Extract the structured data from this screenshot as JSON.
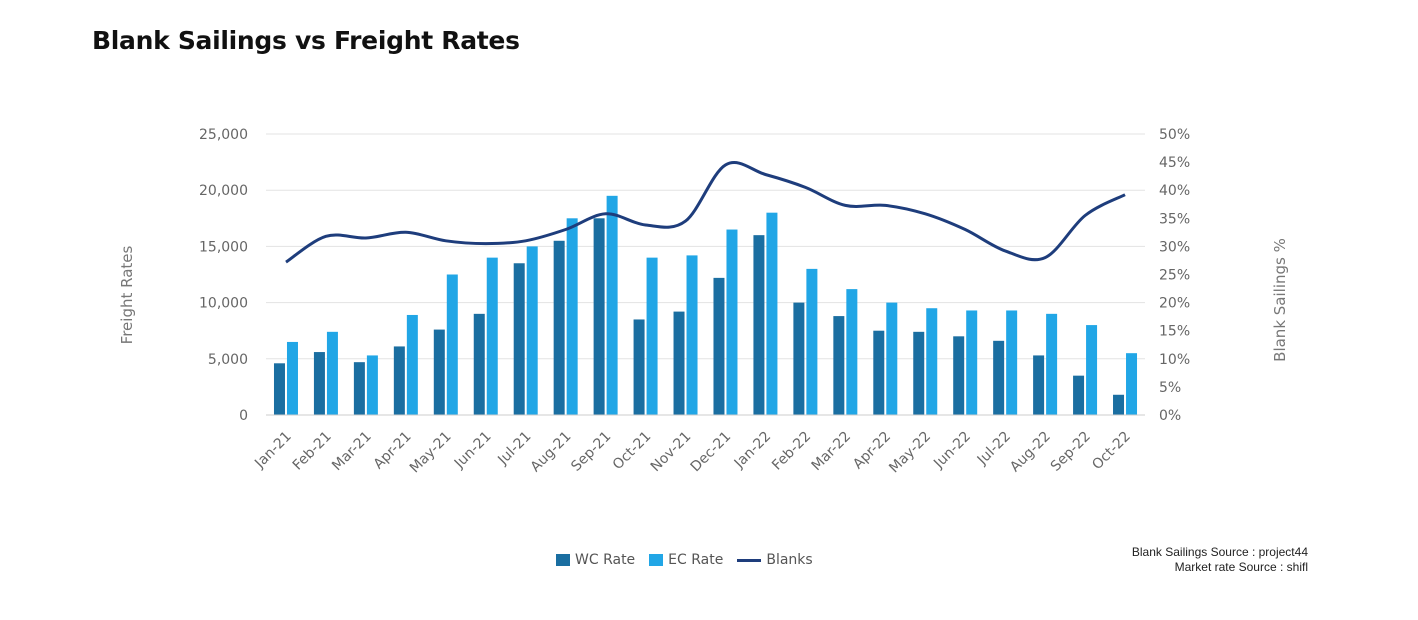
{
  "chart_data": {
    "type": "bar",
    "title": "Blank Sailings vs Freight Rates",
    "ylabel": "Freight Rates",
    "y2label": "Blank Sailings %",
    "ylim": [
      0,
      25000
    ],
    "y2lim": [
      0,
      0.5
    ],
    "yticks": [
      "0",
      "5,000",
      "10,000",
      "15,000",
      "20,000",
      "25,000"
    ],
    "y2ticks": [
      "0%",
      "5%",
      "10%",
      "15%",
      "20%",
      "25%",
      "30%",
      "35%",
      "40%",
      "45%",
      "50%"
    ],
    "grid": true,
    "legend_position": "bottom",
    "categories": [
      "Jan-21",
      "Feb-21",
      "Mar-21",
      "Apr-21",
      "May-21",
      "Jun-21",
      "Jul-21",
      "Aug-21",
      "Sep-21",
      "Oct-21",
      "Nov-21",
      "Dec-21",
      "Jan-22",
      "Feb-22",
      "Mar-22",
      "Apr-22",
      "May-22",
      "Jun-22",
      "Jul-22",
      "Aug-22",
      "Sep-22",
      "Oct-22"
    ],
    "series": [
      {
        "name": "WC Rate",
        "kind": "bar",
        "axis": "left",
        "color": "#1A6EA1",
        "values": [
          4600,
          5600,
          4700,
          6100,
          7600,
          9000,
          13500,
          15500,
          17500,
          8500,
          9200,
          12200,
          16000,
          10000,
          8800,
          7500,
          7400,
          7000,
          6600,
          5300,
          3500,
          1800
        ]
      },
      {
        "name": "EC Rate",
        "kind": "bar",
        "axis": "left",
        "color": "#21A6E6",
        "values": [
          6500,
          7400,
          5300,
          8900,
          12500,
          14000,
          15000,
          17500,
          19500,
          14000,
          14200,
          16500,
          18000,
          13000,
          11200,
          10000,
          9500,
          9300,
          9300,
          9000,
          8000,
          5500
        ]
      },
      {
        "name": "Blanks",
        "kind": "line",
        "axis": "right",
        "color": "#1E3D7C",
        "values": [
          0.272,
          0.318,
          0.315,
          0.325,
          0.31,
          0.305,
          0.31,
          0.33,
          0.358,
          0.338,
          0.345,
          0.445,
          0.428,
          0.405,
          0.373,
          0.373,
          0.358,
          0.33,
          0.292,
          0.28,
          0.355,
          0.392
        ]
      }
    ]
  },
  "sources": {
    "line1": "Blank Sailings Source : project44",
    "line2": "Market rate Source : shifl"
  }
}
